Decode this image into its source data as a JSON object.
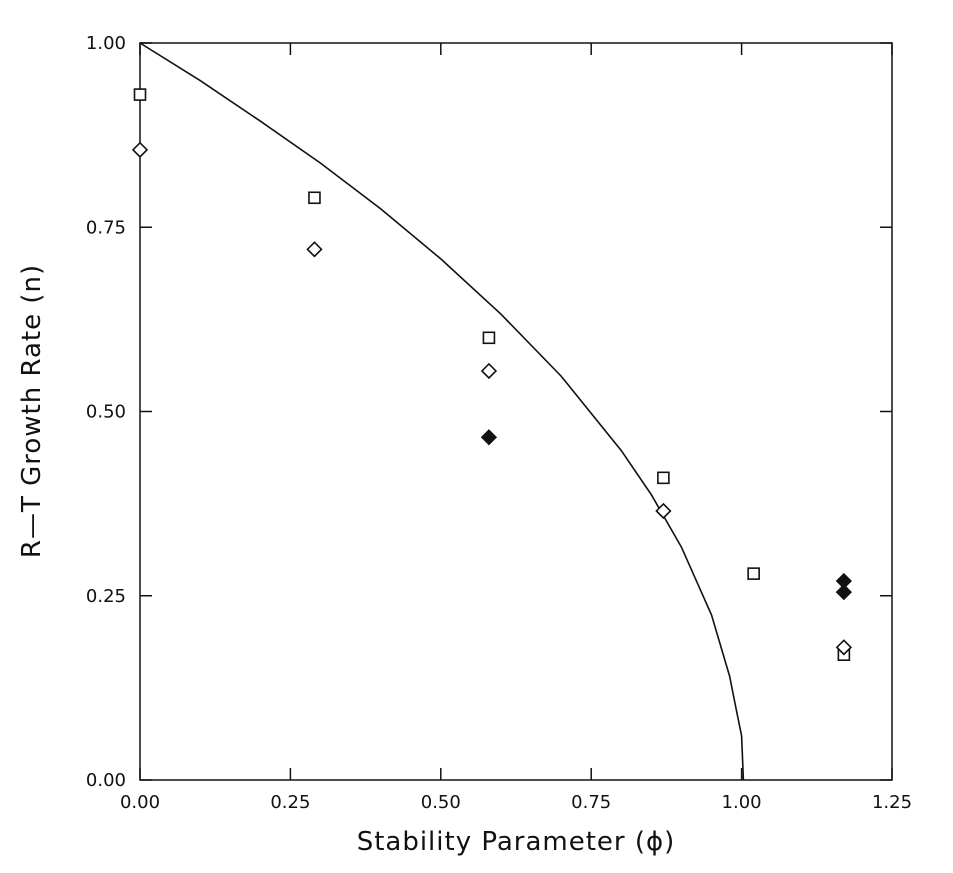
{
  "chart_data": {
    "type": "scatter",
    "title": "",
    "xlabel": "Stability Parameter (ϕ)",
    "ylabel": "R—T Growth Rate (n)",
    "xlim": [
      0,
      1.25
    ],
    "ylim": [
      0,
      1.0
    ],
    "x_ticks": [
      0,
      0.25,
      0.5,
      0.75,
      1.0,
      1.25
    ],
    "y_ticks": [
      0,
      0.25,
      0.5,
      0.75,
      1.0
    ],
    "x_tick_labels": [
      "0.00",
      "0.25",
      "0.50",
      "0.75",
      "1.00",
      "1.25"
    ],
    "y_tick_labels": [
      "0.00",
      "0.25",
      "0.50",
      "0.75",
      "1.00"
    ],
    "grid": false,
    "legend": "none",
    "curve": {
      "style": "solid line",
      "x": [
        0,
        0.1,
        0.2,
        0.3,
        0.4,
        0.5,
        0.6,
        0.7,
        0.8,
        0.85,
        0.9,
        0.95,
        0.98,
        0.99,
        1.0,
        1.003
      ],
      "y": [
        1.0,
        0.949,
        0.894,
        0.837,
        0.775,
        0.707,
        0.632,
        0.548,
        0.447,
        0.387,
        0.316,
        0.224,
        0.141,
        0.1,
        0.06,
        0.0
      ]
    },
    "series": [
      {
        "marker": "open-square",
        "x": [
          0.0,
          0.29,
          0.58,
          0.87,
          1.02,
          1.17
        ],
        "y": [
          0.93,
          0.79,
          0.6,
          0.41,
          0.28,
          0.17
        ]
      },
      {
        "marker": "open-diamond",
        "x": [
          0.0,
          0.29,
          0.58,
          0.87,
          1.17
        ],
        "y": [
          0.855,
          0.72,
          0.555,
          0.365,
          0.18
        ]
      },
      {
        "marker": "filled-diamond",
        "x": [
          0.58,
          1.17,
          1.17
        ],
        "y": [
          0.465,
          0.27,
          0.255
        ]
      }
    ],
    "colors": {
      "ink": "#111111",
      "background": "#ffffff"
    }
  }
}
